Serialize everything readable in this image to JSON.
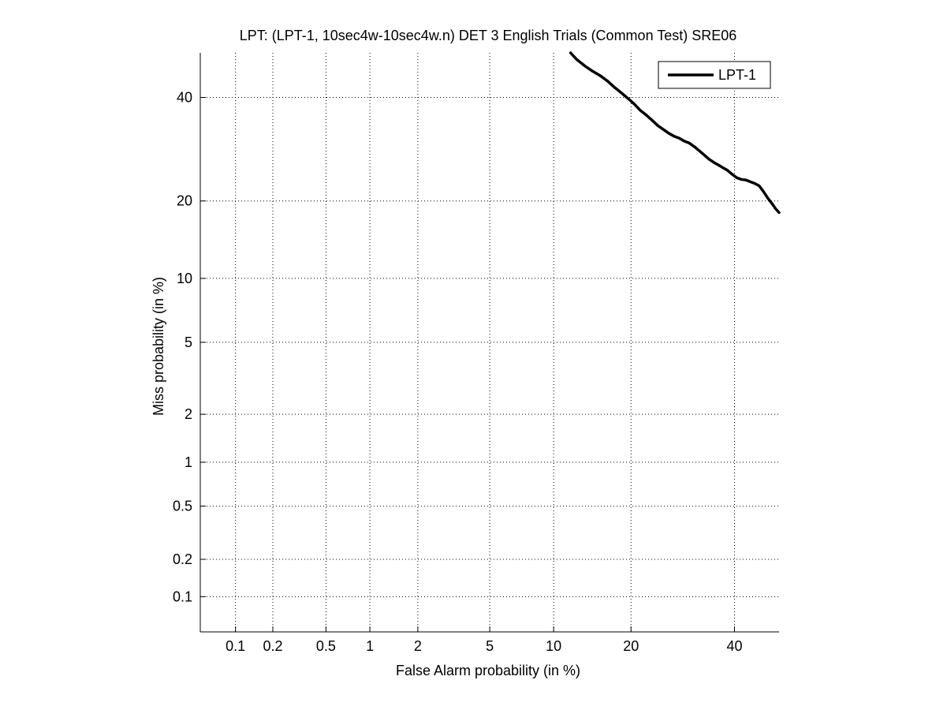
{
  "chart_data": {
    "type": "line",
    "title": "LPT: (LPT-1, 10sec4w-10sec4w.n) DET 3 English Trials (Common Test) SRE06",
    "xlabel": "False Alarm probability (in %)",
    "ylabel": "Miss probability (in %)",
    "x_scale": "probit",
    "y_scale": "probit",
    "xlim": [
      0.05,
      50
    ],
    "ylim": [
      0.05,
      50
    ],
    "x_ticks": [
      {
        "value": 0.1,
        "label": "0.1"
      },
      {
        "value": 0.2,
        "label": "0.2"
      },
      {
        "value": 0.5,
        "label": "0.5"
      },
      {
        "value": 1,
        "label": "1"
      },
      {
        "value": 2,
        "label": "2"
      },
      {
        "value": 5,
        "label": "5"
      },
      {
        "value": 10,
        "label": "10"
      },
      {
        "value": 20,
        "label": "20"
      },
      {
        "value": 40,
        "label": "40"
      }
    ],
    "y_ticks": [
      {
        "value": 0.1,
        "label": "0.1"
      },
      {
        "value": 0.2,
        "label": "0.2"
      },
      {
        "value": 0.5,
        "label": "0.5"
      },
      {
        "value": 1,
        "label": "1"
      },
      {
        "value": 2,
        "label": "2"
      },
      {
        "value": 5,
        "label": "5"
      },
      {
        "value": 10,
        "label": "10"
      },
      {
        "value": 20,
        "label": "20"
      },
      {
        "value": 40,
        "label": "40"
      }
    ],
    "grid": true,
    "legend_position": "top-right",
    "series": [
      {
        "name": "LPT-1",
        "color": "#000000",
        "x": [
          11.8,
          12.5,
          13.5,
          14.5,
          15.5,
          16.5,
          17.5,
          18.5,
          19.5,
          20.5,
          21.5,
          22.5,
          23.5,
          24.5,
          25.5,
          26.5,
          27.5,
          28.5,
          29.5,
          30.5,
          31.5,
          32.5,
          33.5,
          34.5,
          35.5,
          36.5,
          37.5,
          38.5,
          39.5,
          40.5,
          41.5,
          42.5,
          43.5,
          44.5,
          45.5,
          46.5,
          47.5,
          48.5,
          49.2,
          50
        ],
        "y": [
          50,
          48.5,
          47,
          45.8,
          44.8,
          43.6,
          42.2,
          41.0,
          39.8,
          38.6,
          37.2,
          36.2,
          35.1,
          34.0,
          33.2,
          32.4,
          31.8,
          31.4,
          30.8,
          30.4,
          29.7,
          28.9,
          28.1,
          27.3,
          26.7,
          26.2,
          25.7,
          25.2,
          24.5,
          23.9,
          23.6,
          23.5,
          23.2,
          22.9,
          22.5,
          21.5,
          20.4,
          19.5,
          18.8,
          18.2
        ]
      }
    ]
  }
}
